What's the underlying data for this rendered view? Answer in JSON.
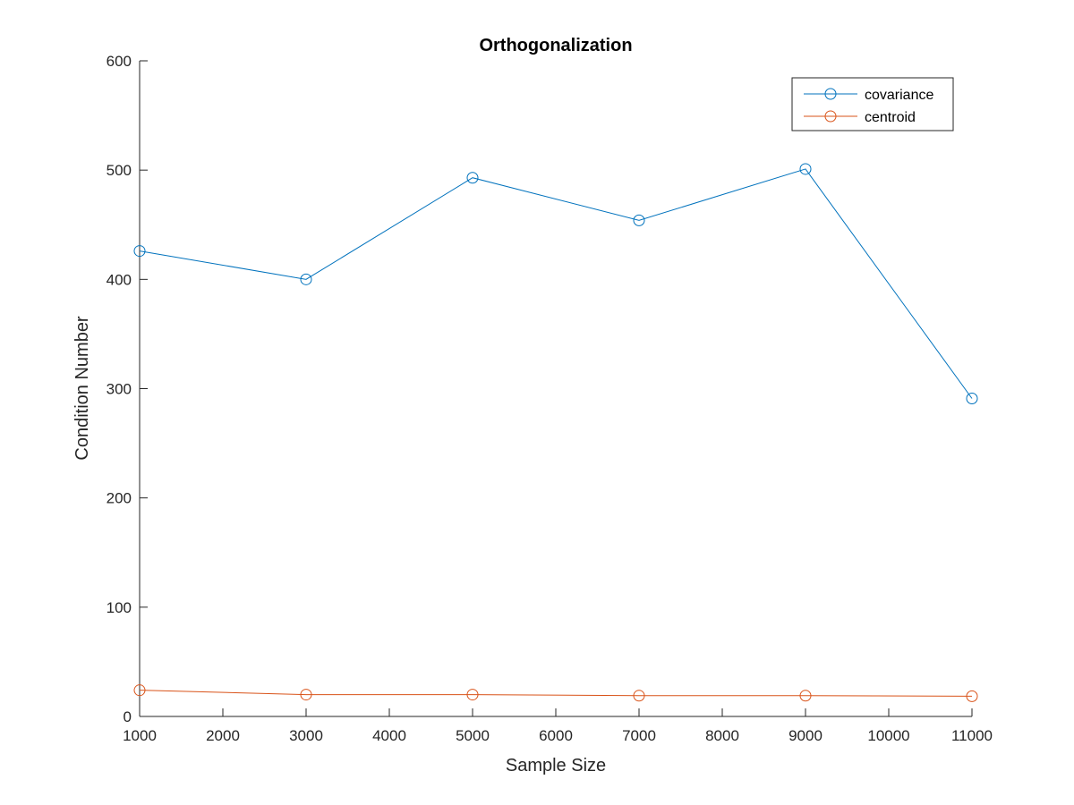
{
  "chart_data": {
    "type": "line",
    "title": "Orthogonalization",
    "xlabel": "Sample Size",
    "ylabel": "Condition Number",
    "xlim": [
      1000,
      11000
    ],
    "ylim": [
      0,
      600
    ],
    "xticks": [
      1000,
      2000,
      3000,
      4000,
      5000,
      6000,
      7000,
      8000,
      9000,
      10000,
      11000
    ],
    "yticks": [
      0,
      100,
      200,
      300,
      400,
      500,
      600
    ],
    "grid": false,
    "legend_position": "top-right",
    "x": [
      1000,
      3000,
      5000,
      7000,
      9000,
      11000
    ],
    "series": [
      {
        "name": "covariance",
        "color": "#0072BD",
        "marker": "circle",
        "values": [
          426,
          400,
          493,
          454,
          501,
          291
        ]
      },
      {
        "name": "centroid",
        "color": "#D95319",
        "marker": "circle",
        "values": [
          24,
          20,
          20,
          19,
          19,
          18.5
        ]
      }
    ]
  }
}
